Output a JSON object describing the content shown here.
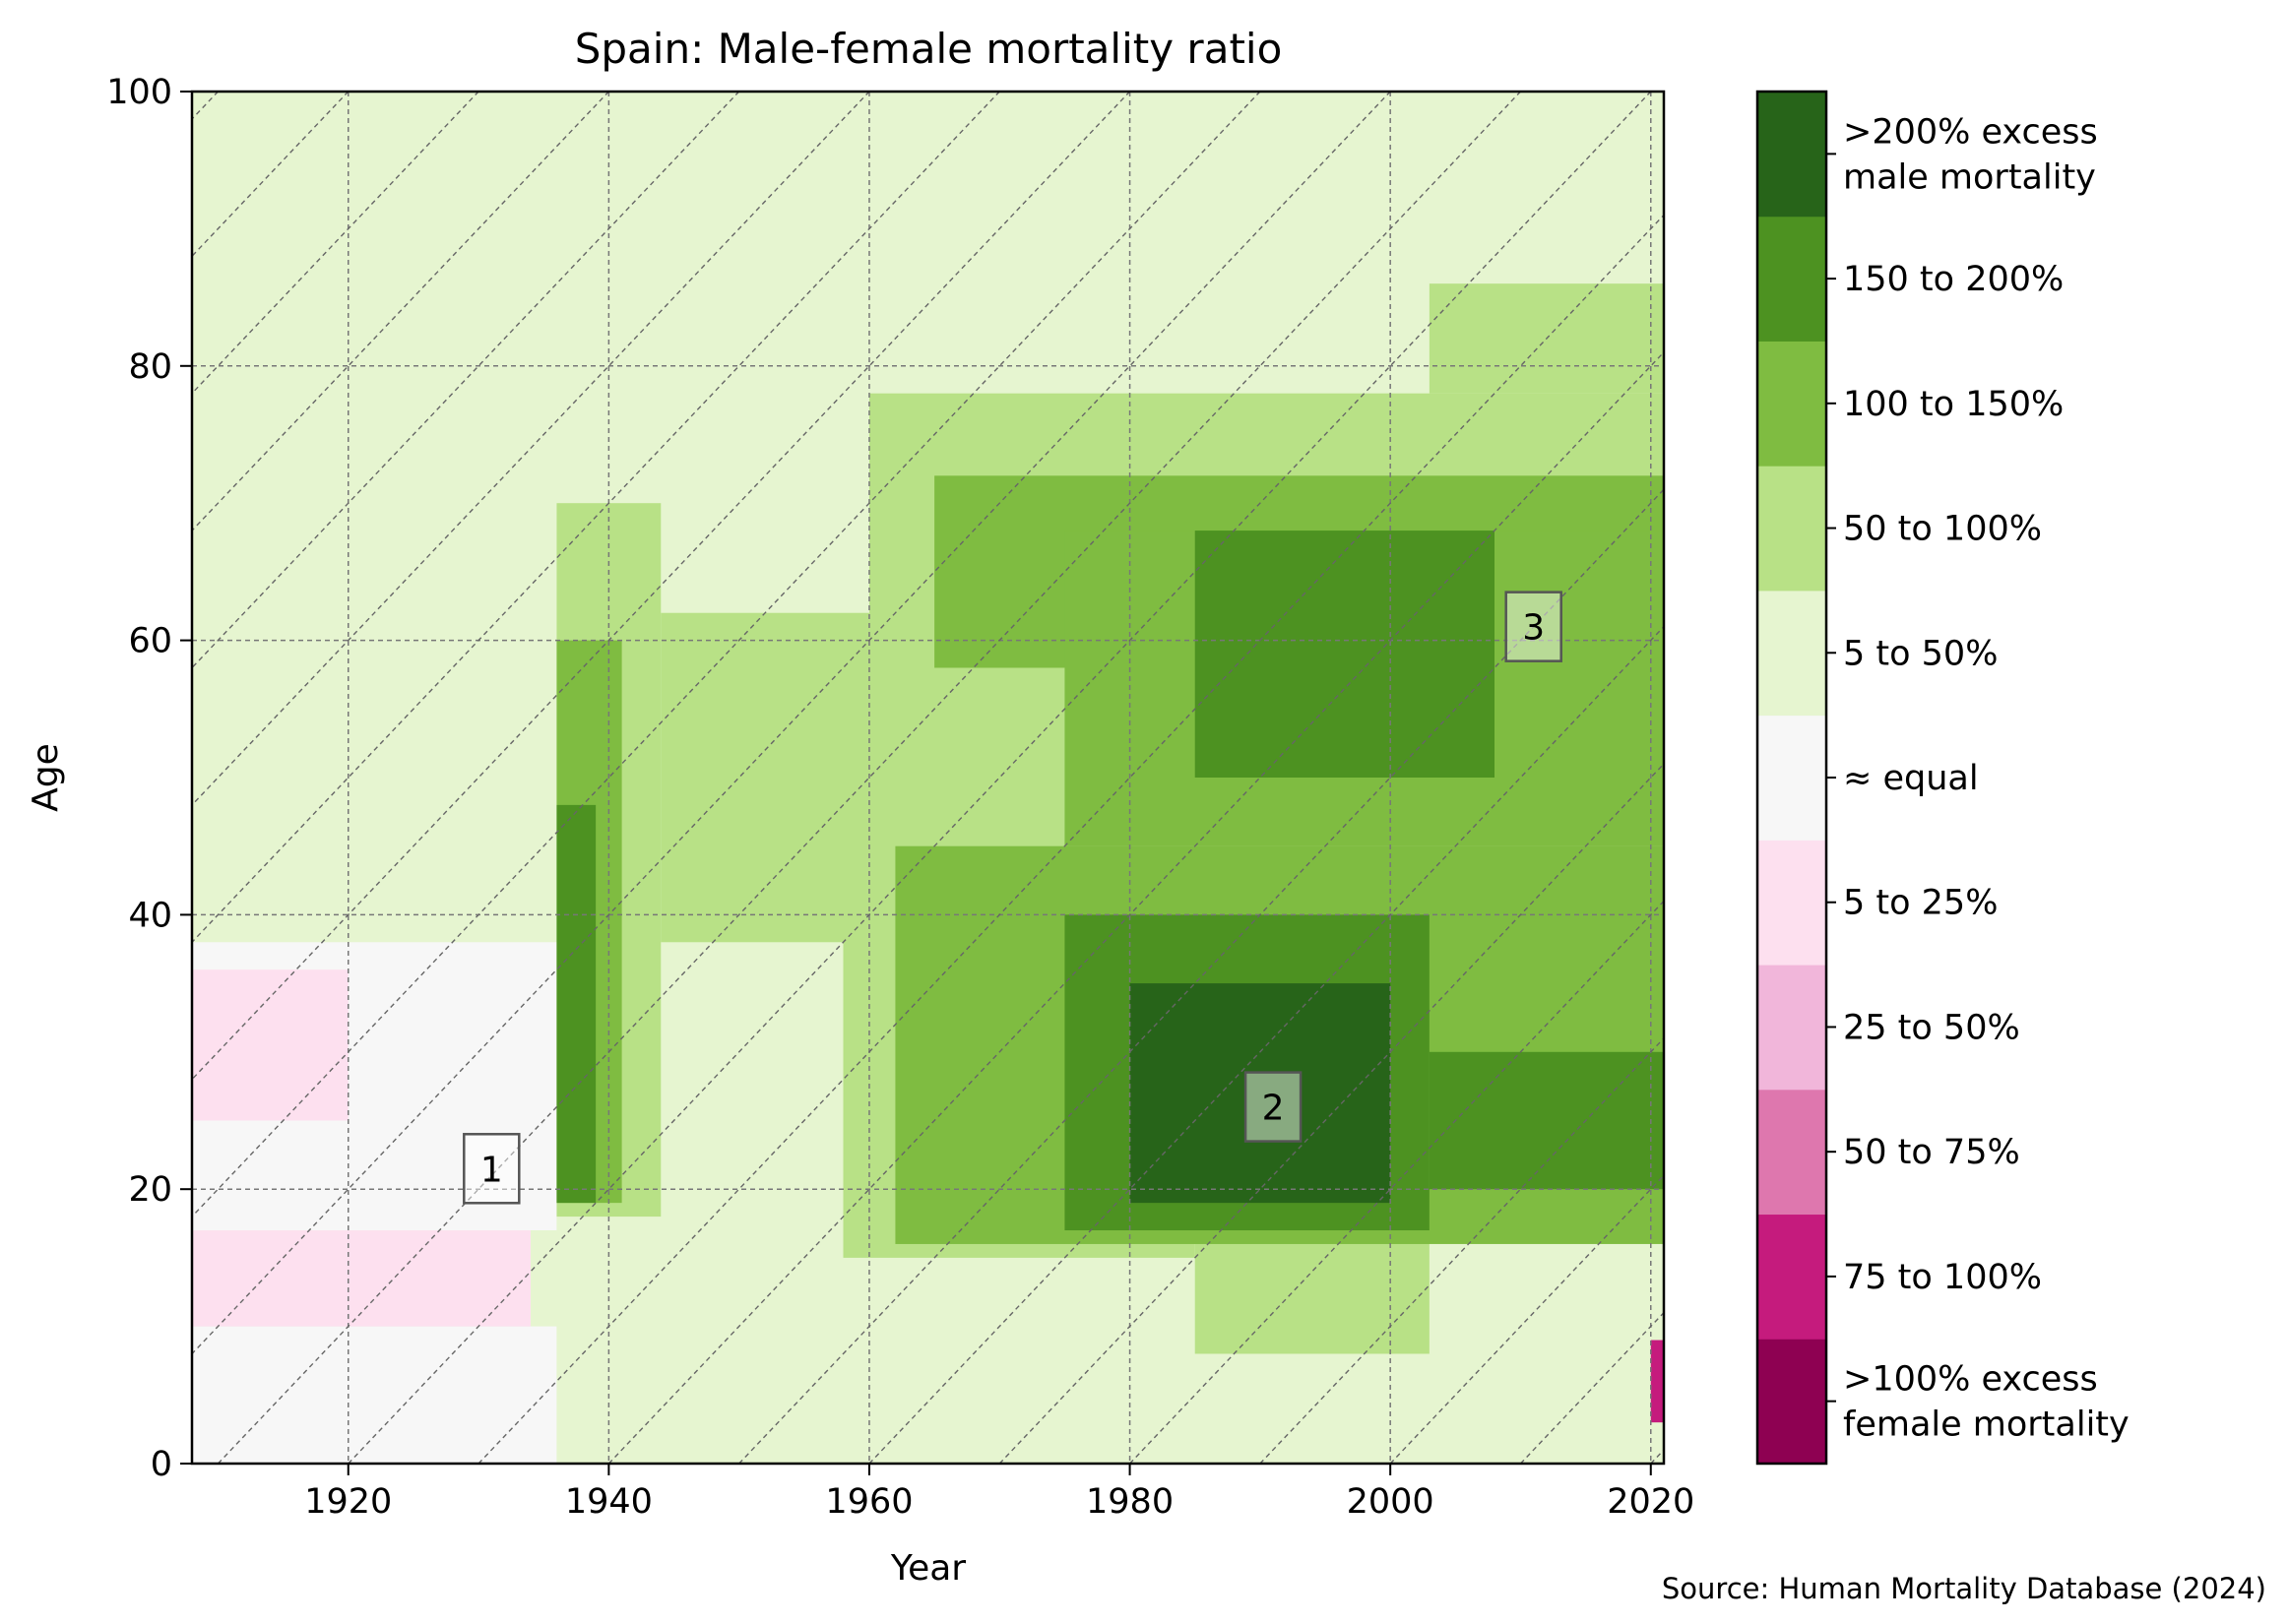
{
  "chart_data": {
    "type": "heatmap",
    "title": "Spain: Male-female mortality ratio",
    "xlabel": "Year",
    "ylabel": "Age",
    "xlim": [
      1908,
      2021
    ],
    "ylim": [
      0,
      100
    ],
    "x_ticks": [
      1920,
      1940,
      1960,
      1980,
      2000,
      2020
    ],
    "y_ticks": [
      0,
      20,
      40,
      60,
      80,
      100
    ],
    "grid": true,
    "cohort_lines": true,
    "source": "Source: Human Mortality Database (2024)",
    "colorbar": [
      {
        "label": ">100% excess\nfemale mortality",
        "color": "#8e0152"
      },
      {
        "label": "75 to 100%",
        "color": "#c51b7d"
      },
      {
        "label": "50 to 75%",
        "color": "#de77ae"
      },
      {
        "label": "25 to 50%",
        "color": "#f1b6da"
      },
      {
        "label": "5 to 25%",
        "color": "#fde0ef"
      },
      {
        "label": "≈ equal",
        "color": "#f7f7f7"
      },
      {
        "label": "5 to 50%",
        "color": "#e6f5d0"
      },
      {
        "label": "50 to 100%",
        "color": "#b8e186"
      },
      {
        "label": "100 to 150%",
        "color": "#7fbc41"
      },
      {
        "label": "150 to 200%",
        "color": "#4d9221"
      },
      {
        "label": ">200% excess\nmale mortality",
        "color": "#276419"
      }
    ],
    "annotations": [
      {
        "label": "1",
        "year": 1931,
        "age": 21.5
      },
      {
        "label": "2",
        "year": 1991,
        "age": 26
      },
      {
        "label": "3",
        "year": 2011,
        "age": 61
      }
    ],
    "regions": [
      {
        "class": "5 to 50%",
        "years": [
          1908,
          2021
        ],
        "ages": [
          0,
          100
        ]
      },
      {
        "class": "≈ equal",
        "years": [
          1908,
          1936
        ],
        "ages": [
          0,
          10
        ]
      },
      {
        "class": "5 to 25%",
        "years": [
          1908,
          1934
        ],
        "ages": [
          10,
          17
        ]
      },
      {
        "class": "≈ equal",
        "years": [
          1908,
          1936
        ],
        "ages": [
          17,
          38
        ]
      },
      {
        "class": "5 to 25%",
        "years": [
          1908,
          1920
        ],
        "ages": [
          25,
          36
        ]
      },
      {
        "class": "5 to 50%",
        "years": [
          1936,
          1960
        ],
        "ages": [
          0,
          18
        ]
      },
      {
        "class": "50 to 100%",
        "years": [
          1936,
          1944
        ],
        "ages": [
          18,
          70
        ]
      },
      {
        "class": "100 to 150%",
        "years": [
          1936,
          1941
        ],
        "ages": [
          19,
          60
        ]
      },
      {
        "class": "150 to 200%",
        "years": [
          1936,
          1939
        ],
        "ages": [
          19,
          48
        ]
      },
      {
        "class": "50 to 100%",
        "years": [
          1944,
          1975
        ],
        "ages": [
          38,
          62
        ]
      },
      {
        "class": "50 to 100%",
        "years": [
          1958,
          1985
        ],
        "ages": [
          15,
          40
        ]
      },
      {
        "class": "50 to 100%",
        "years": [
          1960,
          2021
        ],
        "ages": [
          40,
          78
        ]
      },
      {
        "class": "50 to 100%",
        "years": [
          1985,
          2021
        ],
        "ages": [
          8,
          40
        ]
      },
      {
        "class": "50 to 100%",
        "years": [
          2003,
          2021
        ],
        "ages": [
          78,
          86
        ]
      },
      {
        "class": "100 to 150%",
        "years": [
          1965,
          2021
        ],
        "ages": [
          58,
          72
        ]
      },
      {
        "class": "100 to 150%",
        "years": [
          1975,
          2021
        ],
        "ages": [
          45,
          68
        ]
      },
      {
        "class": "100 to 150%",
        "years": [
          1962,
          2021
        ],
        "ages": [
          16,
          45
        ]
      },
      {
        "class": "150 to 200%",
        "years": [
          1975,
          2003
        ],
        "ages": [
          17,
          40
        ]
      },
      {
        "class": "150 to 200%",
        "years": [
          1985,
          2008
        ],
        "ages": [
          50,
          68
        ]
      },
      {
        "class": "150 to 200%",
        "years": [
          2003,
          2021
        ],
        "ages": [
          20,
          30
        ]
      },
      {
        "class": ">200% excess\nmale mortality",
        "years": [
          1980,
          2000
        ],
        "ages": [
          19,
          35
        ]
      },
      {
        "class": "5 to 50%",
        "years": [
          2003,
          2021
        ],
        "ages": [
          0,
          16
        ]
      },
      {
        "class": "75 to 100%",
        "years": [
          2020,
          2021
        ],
        "ages": [
          3,
          9
        ]
      }
    ]
  }
}
